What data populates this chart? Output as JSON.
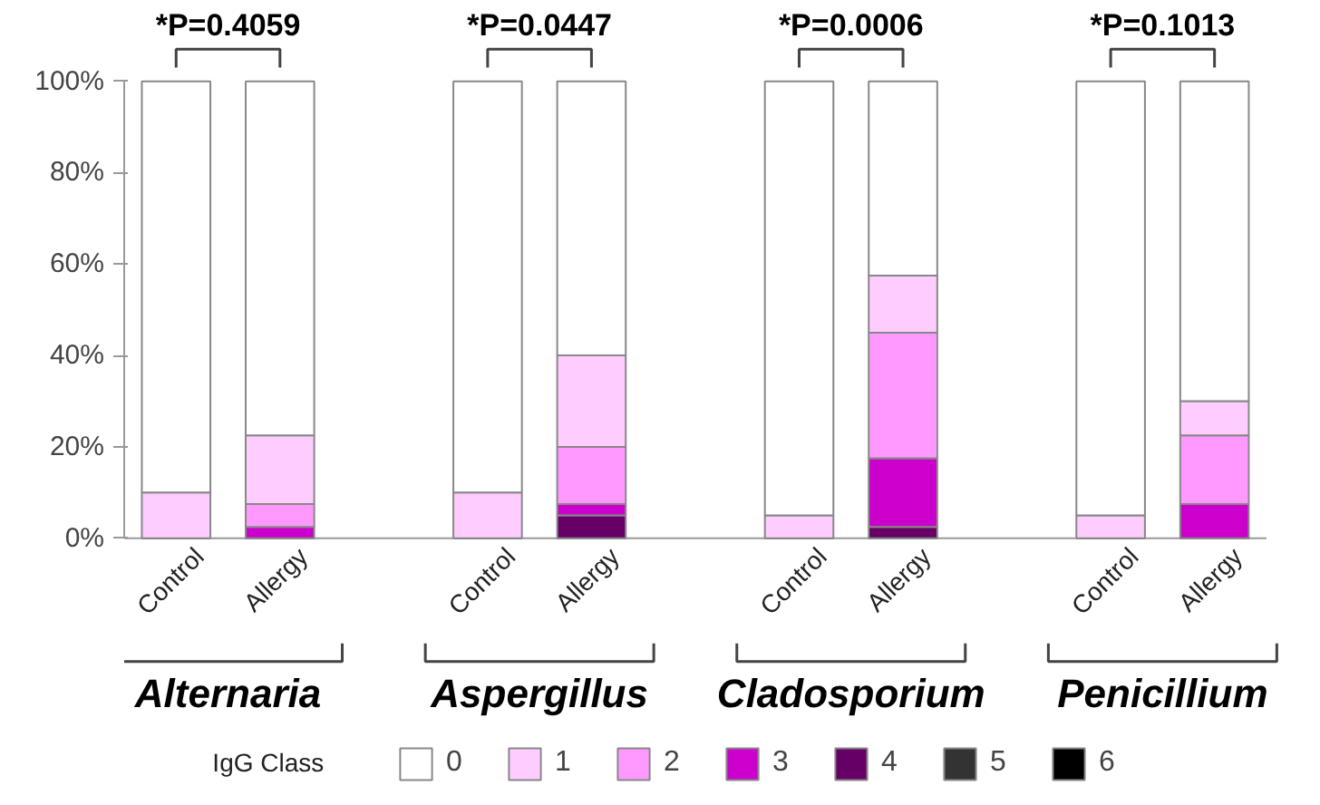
{
  "chart_data": {
    "type": "bar",
    "stacked": true,
    "categories": [
      "Control",
      "Allergy",
      null,
      "Control",
      "Allergy",
      null,
      "Control",
      "Allergy",
      null,
      "Control",
      "Allergy"
    ],
    "legend_title": "IgG Class",
    "annotations": [
      "*P=0.4059",
      "*P=0.0447",
      "*P=0.0006",
      "*P=0.1013",
      "Alternaria",
      "Aspergillus",
      "Cladosporium",
      "Penicillium"
    ],
    "series": [
      {
        "name": "6",
        "color": "#000000",
        "values": [
          0,
          0,
          null,
          0,
          0,
          null,
          0,
          0,
          null,
          0,
          0
        ]
      },
      {
        "name": "5",
        "color": "#333333",
        "values": [
          0,
          0,
          null,
          0,
          0,
          null,
          0,
          0,
          null,
          0,
          0
        ]
      },
      {
        "name": "4",
        "color": "#660066",
        "values": [
          0,
          0,
          null,
          0,
          5,
          null,
          0,
          2.5,
          null,
          0,
          0
        ]
      },
      {
        "name": "3",
        "color": "#cc00cc",
        "values": [
          0,
          2.5,
          null,
          0,
          2.5,
          null,
          0,
          15,
          null,
          0,
          7.5
        ]
      },
      {
        "name": "2",
        "color": "#ff99ff",
        "values": [
          0,
          5,
          null,
          0,
          12.5,
          null,
          0,
          27.5,
          null,
          0,
          15
        ]
      },
      {
        "name": "1",
        "color": "#ffccff",
        "values": [
          10,
          15,
          null,
          10,
          20,
          null,
          5,
          12.5,
          null,
          5,
          7.5
        ]
      },
      {
        "name": "0",
        "color": "#ffffff",
        "values": [
          90,
          77.5,
          null,
          90,
          60,
          null,
          95,
          42.5,
          null,
          95,
          70
        ]
      }
    ],
    "ylim": [
      0,
      100
    ],
    "yticks": [
      {
        "value": 0,
        "label": "0%"
      },
      {
        "value": 20,
        "label": "20%"
      },
      {
        "value": 40,
        "label": "40%"
      },
      {
        "value": 60,
        "label": "60%"
      },
      {
        "value": 80,
        "label": "80%"
      },
      {
        "value": 100,
        "label": "100%"
      }
    ],
    "grid": false,
    "legend": "bottom"
  }
}
